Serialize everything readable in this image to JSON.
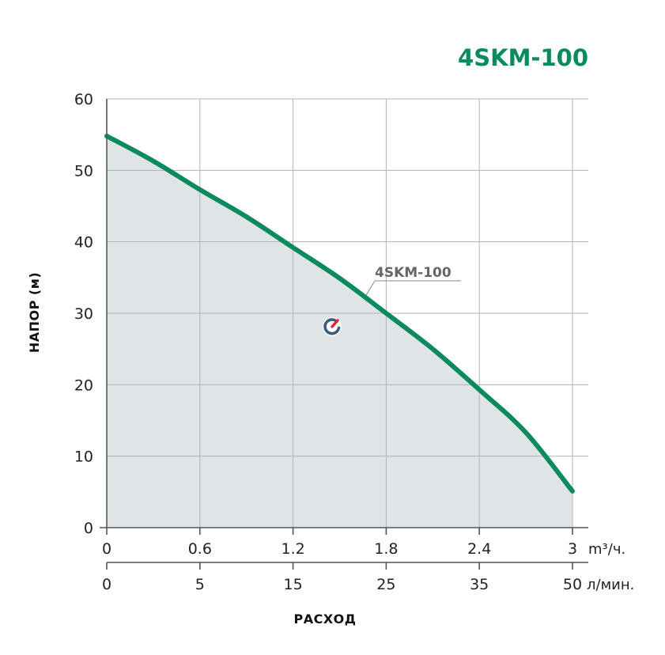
{
  "chart_data": {
    "type": "area",
    "title": "4SKM-100",
    "ylabel": "НАПОР (м)",
    "xlabel": "РАСХОД",
    "ylim": [
      0,
      60
    ],
    "yticks": [
      "0",
      "10",
      "20",
      "30",
      "40",
      "50",
      "60"
    ],
    "xlim": [
      0,
      3
    ],
    "x_ticks_primary": [
      "0",
      "0.6",
      "1.2",
      "1.8",
      "2.4",
      "3"
    ],
    "x_unit_primary": "m³/ч.",
    "x_ticks_secondary": [
      "0",
      "5",
      "15",
      "25",
      "35",
      "50"
    ],
    "x_unit_secondary": "л/мин.",
    "grid": true,
    "series": [
      {
        "name": "4SKM-100",
        "x": [
          0,
          0.3,
          0.6,
          0.9,
          1.2,
          1.5,
          1.8,
          2.1,
          2.4,
          2.7,
          3.0
        ],
        "y": [
          54.8,
          51.3,
          47.3,
          43.5,
          39.2,
          34.9,
          30.0,
          25.0,
          19.3,
          13.3,
          5.1
        ]
      }
    ],
    "colors": {
      "line": "#0a8a5e",
      "fill": "#dfe5e7",
      "title": "#0a8a5e"
    }
  }
}
